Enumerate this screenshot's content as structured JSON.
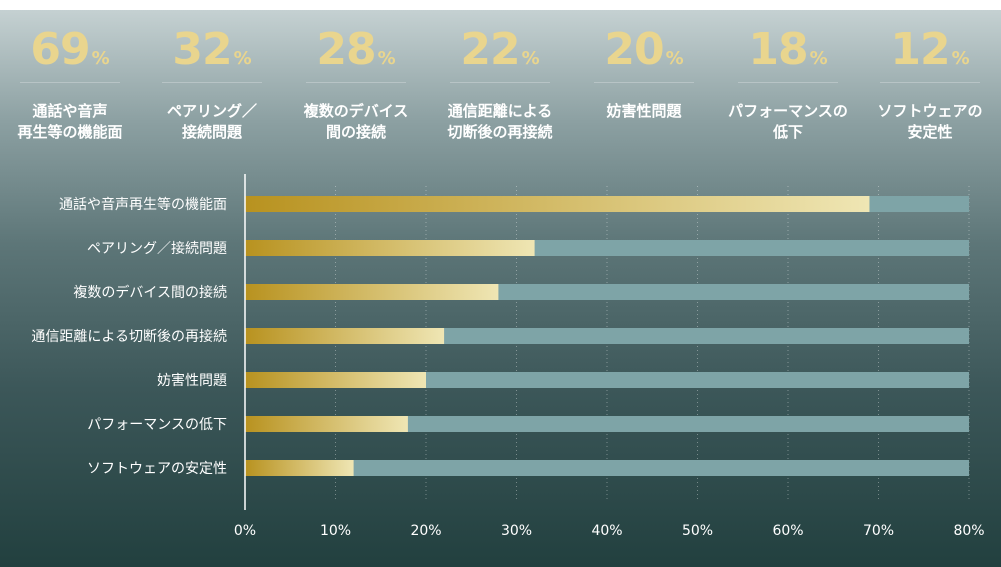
{
  "stats": [
    {
      "value": "69",
      "unit": "%",
      "label": "通話や音声\n再生等の機能面"
    },
    {
      "value": "32",
      "unit": "%",
      "label": "ペアリング／\n接続問題"
    },
    {
      "value": "28",
      "unit": "%",
      "label": "複数のデバイス\n間の接続"
    },
    {
      "value": "22",
      "unit": "%",
      "label": "通信距離による\n切断後の再接続"
    },
    {
      "value": "20",
      "unit": "%",
      "label": "妨害性問題"
    },
    {
      "value": "18",
      "unit": "%",
      "label": "パフォーマンスの\n低下"
    },
    {
      "value": "12",
      "unit": "%",
      "label": "ソフトウェアの\n安定性"
    }
  ],
  "colors": {
    "bar_start": "#b8921f",
    "bar_end": "#efe6b4",
    "track": "#7ea4a7",
    "number": "#e9d58e"
  },
  "chart_data": {
    "type": "bar",
    "orientation": "horizontal",
    "categories": [
      "通話や音声再生等の機能面",
      "ペアリング／接続問題",
      "複数のデバイス間の接続",
      "通信距離による切断後の再接続",
      "妨害性問題",
      "パフォーマンスの低下",
      "ソフトウェアの安定性"
    ],
    "values": [
      69,
      32,
      28,
      22,
      20,
      18,
      12
    ],
    "max": 80,
    "xlim": [
      0,
      80
    ],
    "ticks": [
      0,
      10,
      20,
      30,
      40,
      50,
      60,
      70,
      80
    ],
    "tick_labels": [
      "0%",
      "10%",
      "20%",
      "30%",
      "40%",
      "50%",
      "60%",
      "70%",
      "80%"
    ],
    "grid": "vertical dotted",
    "title": "",
    "xlabel": "",
    "ylabel": ""
  }
}
